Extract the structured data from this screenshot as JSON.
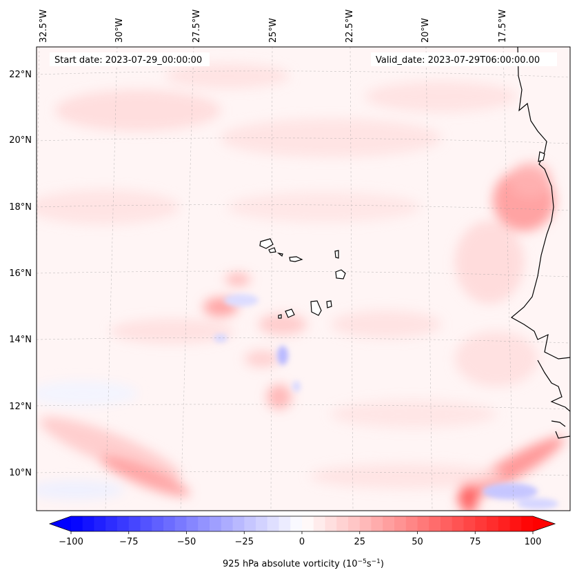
{
  "map": {
    "start_date": "Start date: 2023-07-29_00:00:00",
    "valid_date": "Valid_date: 2023-07-29T06:00:00.00",
    "lon_labels": [
      "32.5°W",
      "30°W",
      "27.5°W",
      "25°W",
      "22.5°W",
      "20°W",
      "17.5°W"
    ],
    "lat_labels": [
      "22°N",
      "20°N",
      "18°N",
      "16°N",
      "14°N",
      "12°N",
      "10°N"
    ]
  },
  "colorbar": {
    "label_text": "925 hPa absolute vorticity (10",
    "label_exp1": "−5",
    "label_mid": "s",
    "label_exp2": "−1",
    "label_end": ")",
    "ticks": [
      "−100",
      "−75",
      "−50",
      "−25",
      "0",
      "25",
      "50",
      "75",
      "100"
    ],
    "min": -100,
    "max": 100,
    "neg_color": "#0000ff",
    "pos_color": "#ff0000"
  }
}
